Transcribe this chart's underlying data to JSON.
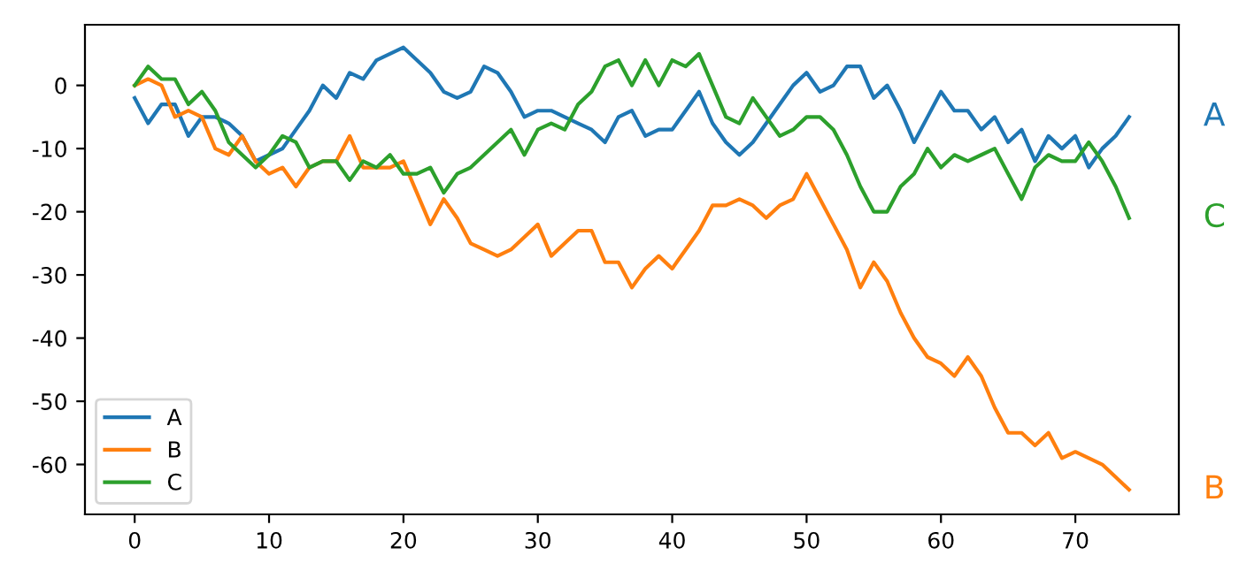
{
  "chart_data": {
    "type": "line",
    "x": [
      0,
      1,
      2,
      3,
      4,
      5,
      6,
      7,
      8,
      9,
      10,
      11,
      12,
      13,
      14,
      15,
      16,
      17,
      18,
      19,
      20,
      21,
      22,
      23,
      24,
      25,
      26,
      27,
      28,
      29,
      30,
      31,
      32,
      33,
      34,
      35,
      36,
      37,
      38,
      39,
      40,
      41,
      42,
      43,
      44,
      45,
      46,
      47,
      48,
      49,
      50,
      51,
      52,
      53,
      54,
      55,
      56,
      57,
      58,
      59,
      60,
      61,
      62,
      63,
      64,
      65,
      66,
      67,
      68,
      69,
      70,
      71,
      72,
      73,
      74
    ],
    "series": [
      {
        "name": "A",
        "color": "#1f77b4",
        "values": [
          -2,
          -6,
          -3,
          -3,
          -8,
          -5,
          -5,
          -6,
          -8,
          -12,
          -11,
          -10,
          -7,
          -4,
          0,
          -2,
          2,
          1,
          4,
          5,
          6,
          4,
          2,
          -1,
          -2,
          -1,
          3,
          2,
          -1,
          -5,
          -4,
          -4,
          -5,
          -6,
          -7,
          -9,
          -5,
          -4,
          -8,
          -7,
          -7,
          -4,
          -1,
          -6,
          -9,
          -11,
          -9,
          -6,
          -3,
          0,
          2,
          -1,
          0,
          3,
          3,
          -2,
          0,
          -4,
          -9,
          -5,
          -1,
          -4,
          -4,
          -7,
          -5,
          -9,
          -7,
          -12,
          -8,
          -10,
          -8,
          -13,
          -10,
          -8,
          -5
        ]
      },
      {
        "name": "B",
        "color": "#ff7f0e",
        "values": [
          0,
          1,
          0,
          -5,
          -4,
          -5,
          -10,
          -11,
          -8,
          -12,
          -14,
          -13,
          -16,
          -13,
          -12,
          -12,
          -8,
          -13,
          -13,
          -13,
          -12,
          -17,
          -22,
          -18,
          -21,
          -25,
          -26,
          -27,
          -26,
          -24,
          -22,
          -27,
          -25,
          -23,
          -23,
          -28,
          -28,
          -32,
          -29,
          -27,
          -29,
          -26,
          -23,
          -19,
          -19,
          -18,
          -19,
          -21,
          -19,
          -18,
          -14,
          -18,
          -22,
          -26,
          -32,
          -28,
          -31,
          -36,
          -40,
          -43,
          -44,
          -46,
          -43,
          -46,
          -51,
          -55,
          -55,
          -57,
          -55,
          -59,
          -58,
          -59,
          -60,
          -62,
          -64
        ]
      },
      {
        "name": "C",
        "color": "#2ca02c",
        "values": [
          0,
          3,
          1,
          1,
          -3,
          -1,
          -4,
          -9,
          -11,
          -13,
          -11,
          -8,
          -9,
          -13,
          -12,
          -12,
          -15,
          -12,
          -13,
          -11,
          -14,
          -14,
          -13,
          -17,
          -14,
          -13,
          -11,
          -9,
          -7,
          -11,
          -7,
          -6,
          -7,
          -3,
          -1,
          3,
          4,
          0,
          4,
          0,
          4,
          3,
          5,
          0,
          -5,
          -6,
          -2,
          -5,
          -8,
          -7,
          -5,
          -5,
          -7,
          -11,
          -16,
          -20,
          -20,
          -16,
          -14,
          -10,
          -13,
          -11,
          -12,
          -11,
          -10,
          -14,
          -18,
          -13,
          -11,
          -12,
          -12,
          -9,
          -12,
          -16,
          -21
        ]
      }
    ],
    "xlim": [
      -3.7,
      77.7
    ],
    "ylim": [
      -67.9,
      9.6
    ],
    "xticks": [
      0,
      10,
      20,
      30,
      40,
      50,
      60,
      70
    ],
    "yticks": [
      -60,
      -50,
      -40,
      -30,
      -20,
      -10,
      0
    ],
    "grid": false,
    "legend": "bottom left"
  }
}
